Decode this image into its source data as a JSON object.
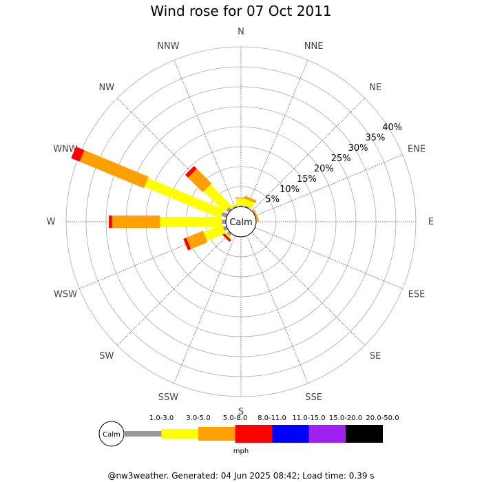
{
  "title": "Wind rose for 07 Oct 2011",
  "footer": "@nw3weather. Generated: 04 Jun 2025 08:42; Load time: 0.39 s",
  "chart_data": {
    "type": "wind-rose",
    "title": "Wind rose for 07 Oct 2011",
    "center_label": "Calm",
    "directions": [
      "N",
      "NNE",
      "NE",
      "ENE",
      "E",
      "ESE",
      "SE",
      "SSE",
      "S",
      "SSW",
      "SW",
      "WSW",
      "W",
      "WNW",
      "NW",
      "NNW"
    ],
    "ring_labels": [
      "5%",
      "10%",
      "15%",
      "20%",
      "25%",
      "30%",
      "35%",
      "40%"
    ],
    "ring_values": [
      5,
      10,
      15,
      20,
      25,
      30,
      35,
      40
    ],
    "speed_unit": "mph",
    "speed_bins": [
      {
        "label": "1.0-3.0",
        "color": "#999999"
      },
      {
        "label": "3.0-5.0",
        "color": "#ffff00"
      },
      {
        "label": "5.0-8.0",
        "color": "#ffa000"
      },
      {
        "label": "8.0-11.0",
        "color": "#ff0000"
      },
      {
        "label": "11.0-15.0",
        "color": "#0000ff"
      },
      {
        "label": "15.0-20.0",
        "color": "#a020f0"
      },
      {
        "label": "20.0-50.0",
        "color": "#000000"
      }
    ],
    "series": [
      {
        "direction": "N",
        "values": [
          0.3,
          1.7,
          0.3,
          0,
          0,
          0,
          0
        ]
      },
      {
        "direction": "NNE",
        "values": [
          0.3,
          1.6,
          0.7,
          0,
          0,
          0,
          0
        ]
      },
      {
        "direction": "NE",
        "values": [
          0,
          0,
          0,
          0,
          0,
          0,
          0
        ]
      },
      {
        "direction": "ENE",
        "values": [
          0,
          0,
          0.5,
          0,
          0,
          0,
          0
        ]
      },
      {
        "direction": "E",
        "values": [
          0,
          0,
          0,
          0,
          0,
          0,
          0
        ]
      },
      {
        "direction": "ESE",
        "values": [
          0,
          0,
          0,
          0,
          0,
          0,
          0
        ]
      },
      {
        "direction": "SE",
        "values": [
          0,
          0,
          0,
          0,
          0,
          0,
          0
        ]
      },
      {
        "direction": "SSE",
        "values": [
          0,
          0,
          0,
          0,
          0,
          0,
          0
        ]
      },
      {
        "direction": "S",
        "values": [
          0,
          0,
          0,
          0,
          0,
          0,
          0
        ]
      },
      {
        "direction": "SSW",
        "values": [
          0.2,
          0,
          0,
          0,
          0,
          0,
          0
        ]
      },
      {
        "direction": "SW",
        "values": [
          0.7,
          0.5,
          0,
          0.6,
          0,
          0,
          0
        ]
      },
      {
        "direction": "WSW",
        "values": [
          0.9,
          5.0,
          4.5,
          0.8,
          0,
          0,
          0
        ]
      },
      {
        "direction": "W",
        "values": [
          1.0,
          15.5,
          12.0,
          0.8,
          0,
          0,
          0
        ]
      },
      {
        "direction": "WNW",
        "values": [
          1.3,
          20.6,
          17.4,
          2.3,
          0,
          0,
          0
        ]
      },
      {
        "direction": "NW",
        "values": [
          0.9,
          7.3,
          5.2,
          1.0,
          0,
          0,
          0
        ]
      },
      {
        "direction": "NNW",
        "values": [
          0.3,
          0.5,
          0,
          0,
          0,
          0,
          0
        ]
      }
    ]
  }
}
